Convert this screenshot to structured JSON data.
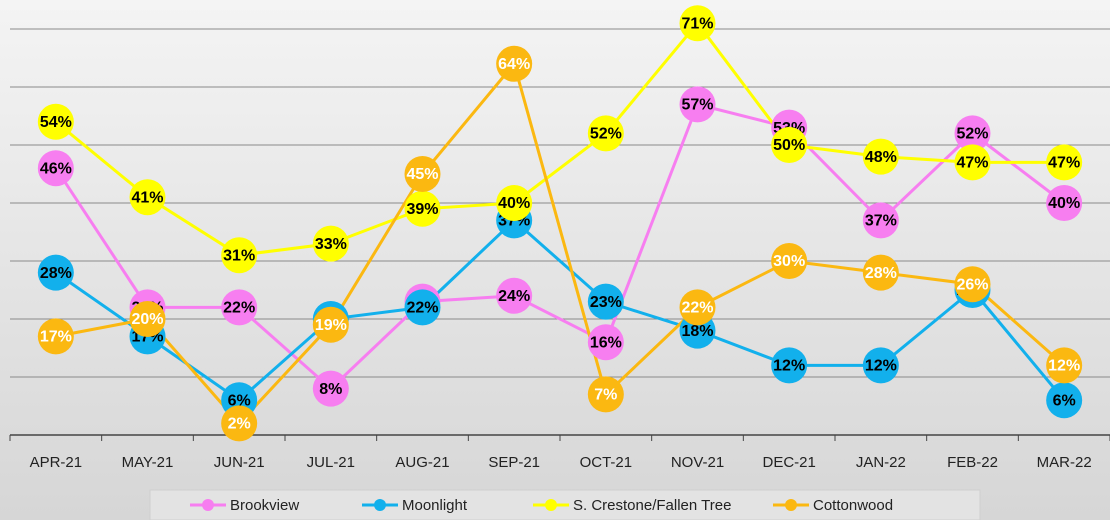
{
  "chart_data": {
    "type": "line",
    "categories": [
      "APR-21",
      "MAY-21",
      "JUN-21",
      "JUL-21",
      "AUG-21",
      "SEP-21",
      "OCT-21",
      "NOV-21",
      "DEC-21",
      "JAN-22",
      "FEB-22",
      "MAR-22"
    ],
    "ylim": [
      0,
      75
    ],
    "yticks": [
      0,
      10,
      20,
      30,
      40,
      50,
      60,
      70
    ],
    "grid": true,
    "legend": "bottom",
    "series": [
      {
        "name": "Brookview",
        "color": "#f77ef0",
        "label_color": "#000000",
        "values": [
          46,
          22,
          22,
          8,
          23,
          24,
          16,
          57,
          53,
          37,
          52,
          40
        ],
        "value_labels": [
          "46%",
          "22%",
          "22%",
          "8%",
          "23%",
          "24%",
          "16%",
          "57%",
          "53%",
          "37%",
          "52%",
          "40%"
        ]
      },
      {
        "name": "Moonlight",
        "color": "#12b0ec",
        "label_color": "#000000",
        "values": [
          28,
          17,
          6,
          20,
          22,
          37,
          23,
          18,
          12,
          12,
          25,
          6
        ],
        "value_labels": [
          "28%",
          "17%",
          "6%",
          "20%",
          "22%",
          "37%",
          "23%",
          "18%",
          "12%",
          "12%",
          "25%",
          "6%"
        ]
      },
      {
        "name": "S. Crestone/Fallen Tree",
        "color": "#ffff00",
        "label_color": "#000000",
        "values": [
          54,
          41,
          31,
          33,
          39,
          40,
          52,
          71,
          50,
          48,
          47,
          47
        ],
        "value_labels": [
          "54%",
          "41%",
          "31%",
          "33%",
          "39%",
          "40%",
          "52%",
          "71%",
          "50%",
          "48%",
          "47%",
          "47%"
        ]
      },
      {
        "name": "Cottonwood",
        "color": "#fbb811",
        "label_color": "#ffffff",
        "values": [
          17,
          20,
          2,
          19,
          45,
          64,
          7,
          22,
          30,
          28,
          26,
          12
        ],
        "value_labels": [
          "17%",
          "20%",
          "2%",
          "19%",
          "45%",
          "64%",
          "7%",
          "22%",
          "30%",
          "28%",
          "26%",
          "12%"
        ]
      }
    ]
  }
}
